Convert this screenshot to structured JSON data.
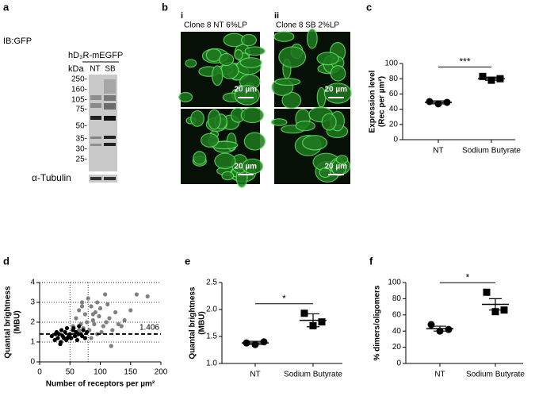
{
  "blot": {
    "panel": "a",
    "probe": "IB:GFP",
    "construct": "hD₃R-mEGFP",
    "unit": "kDa",
    "lanes": [
      "NT",
      "SB"
    ],
    "markers": [
      "250-",
      "160-",
      "105-",
      "75-",
      "50-",
      "35-",
      "30-",
      "25-"
    ],
    "loading_control": "α-Tubulin"
  },
  "images": {
    "panel": "b",
    "columns": [
      {
        "numeral": "i",
        "caption": "Clone 8 NT 6%LP"
      },
      {
        "numeral": "ii",
        "caption": "Clone 8 SB 2%LP"
      }
    ],
    "scale_bars": [
      "20 µm",
      "20 µm",
      "20 µm",
      "20 µm"
    ]
  },
  "chart_data": [
    {
      "type": "dot",
      "panel": "c",
      "ylabel": [
        "Expression level",
        "(Rec per µm²)"
      ],
      "categories": [
        "NT",
        "Sodium Butyrate"
      ],
      "points": [
        [
          50,
          47,
          49
        ],
        [
          83,
          78,
          80
        ]
      ],
      "means": [
        49,
        80
      ],
      "errors": [
        2,
        2
      ],
      "markers": [
        "circle",
        "square"
      ],
      "color": "#000000",
      "significance": "***",
      "ylim": [
        0,
        100
      ],
      "yticks": [
        0,
        20,
        40,
        60,
        80,
        100
      ]
    },
    {
      "type": "scatter",
      "panel": "d",
      "xlabel": "Number of receptors per µm²",
      "ylabel": [
        "Quantal brightness",
        "(MBU)"
      ],
      "series": [
        {
          "color": "#808080",
          "x": [
            55,
            60,
            62,
            65,
            68,
            70,
            72,
            75,
            78,
            80,
            82,
            85,
            88,
            90,
            92,
            95,
            98,
            100,
            105,
            108,
            110,
            115,
            120,
            125,
            130,
            140,
            150,
            160,
            178,
            60,
            70,
            85,
            95,
            65,
            75,
            88,
            102,
            112,
            118,
            135
          ],
          "values": [
            1.8,
            2.2,
            1.5,
            2.6,
            1.9,
            3.0,
            1.7,
            2.4,
            2.0,
            3.2,
            1.6,
            2.8,
            2.1,
            1.9,
            2.5,
            1.4,
            2.3,
            2.7,
            1.8,
            3.4,
            2.0,
            2.2,
            1.6,
            2.5,
            1.9,
            2.1,
            2.6,
            3.4,
            3.3,
            1.3,
            2.8,
            1.2,
            3.0,
            1.6,
            1.2,
            2.4,
            1.5,
            2.9,
            0.8,
            1.8
          ]
        },
        {
          "color": "#000000",
          "x": [
            20,
            25,
            28,
            30,
            32,
            35,
            36,
            38,
            40,
            42,
            44,
            45,
            48,
            50,
            52,
            55,
            58,
            60,
            62,
            65,
            68,
            70,
            72,
            75,
            78,
            26,
            34,
            46,
            56,
            64
          ],
          "values": [
            1.3,
            1.1,
            1.5,
            1.2,
            1.4,
            1.0,
            1.6,
            1.3,
            1.2,
            1.5,
            1.1,
            1.7,
            1.3,
            1.4,
            1.2,
            1.6,
            1.3,
            1.5,
            1.1,
            1.8,
            1.4,
            1.3,
            1.6,
            1.2,
            1.5,
            1.4,
            0.9,
            1.2,
            1.7,
            1.4
          ]
        }
      ],
      "hline": 1.406,
      "vlines": [
        50,
        80
      ],
      "grid": true,
      "xlim": [
        0,
        200
      ],
      "xticks": [
        0,
        50,
        100,
        150,
        200
      ],
      "ylim": [
        0,
        4
      ],
      "yticks": [
        0,
        1,
        2,
        3,
        4
      ]
    },
    {
      "type": "dot",
      "panel": "e",
      "ylabel": [
        "Quantal brightness",
        "(MBU)"
      ],
      "categories": [
        "NT",
        "Sodium Butyrate"
      ],
      "points": [
        [
          1.38,
          1.35,
          1.4
        ],
        [
          1.93,
          1.7,
          1.77
        ]
      ],
      "means": [
        1.38,
        1.8
      ],
      "errors": [
        0.03,
        0.12
      ],
      "markers": [
        "circle",
        "square"
      ],
      "color": "#000000",
      "significance": "*",
      "ylim": [
        1,
        2.5
      ],
      "yticks": [
        {
          "value": 1,
          "label": "1.0"
        },
        1.5,
        {
          "value": 2,
          "label": "2.0"
        },
        2.5
      ]
    },
    {
      "type": "dot",
      "panel": "f",
      "ylabel": [
        "% dimers/oligomers"
      ],
      "categories": [
        "NT",
        "Sodium Butyrate"
      ],
      "points": [
        [
          48,
          40,
          42
        ],
        [
          88,
          64,
          66
        ]
      ],
      "means": [
        43,
        73
      ],
      "errors": [
        3,
        7
      ],
      "markers": [
        "circle",
        "square"
      ],
      "color": "#000000",
      "significance": "*",
      "ylim": [
        0,
        100
      ],
      "yticks": [
        0,
        20,
        40,
        60,
        80,
        100
      ]
    }
  ]
}
